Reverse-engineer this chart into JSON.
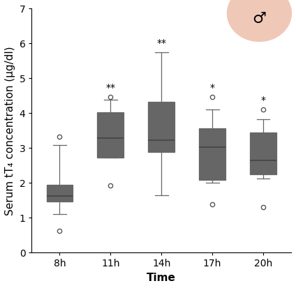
{
  "time_labels": [
    "8h",
    "11h",
    "14h",
    "17h",
    "20h"
  ],
  "boxes": [
    {
      "whislo": 1.1,
      "q1": 1.47,
      "med": 1.62,
      "q3": 1.95,
      "whishi": 3.08,
      "fliers_lo": [
        0.63
      ],
      "fliers_hi": [
        3.33
      ]
    },
    {
      "whislo": 2.72,
      "q1": 2.72,
      "med": 3.28,
      "q3": 4.02,
      "whishi": 4.38,
      "fliers_lo": [
        1.92
      ],
      "fliers_hi": [
        4.47
      ]
    },
    {
      "whislo": 1.65,
      "q1": 2.88,
      "med": 3.23,
      "q3": 4.33,
      "whishi": 5.75,
      "fliers_lo": [],
      "fliers_hi": []
    },
    {
      "whislo": 2.0,
      "q1": 2.08,
      "med": 3.02,
      "q3": 3.57,
      "whishi": 4.1,
      "fliers_lo": [
        1.38
      ],
      "fliers_hi": [
        4.47
      ]
    },
    {
      "whislo": 2.12,
      "q1": 2.25,
      "med": 2.65,
      "q3": 3.45,
      "whishi": 3.82,
      "fliers_lo": [
        1.3
      ],
      "fliers_hi": [
        4.1
      ]
    }
  ],
  "significance": [
    "",
    "**",
    "**",
    "*",
    "*"
  ],
  "sig_positions": [
    4.47,
    4.47,
    5.75,
    4.47,
    4.1
  ],
  "ylim": [
    0,
    7
  ],
  "yticks": [
    0,
    1,
    2,
    3,
    4,
    5,
    6,
    7
  ],
  "ylabel": "Serum tT₄ concentration (μg/dl)",
  "xlabel": "Time",
  "box_color": "#cccccc",
  "box_edge_color": "#666666",
  "median_color": "#444444",
  "whisker_color": "#666666",
  "flier_color": "#555555",
  "background_color": "#ffffff",
  "sig_fontsize": 10,
  "axis_label_fontsize": 11,
  "tick_fontsize": 10,
  "male_symbol_circle_color": "#f0c8b8"
}
